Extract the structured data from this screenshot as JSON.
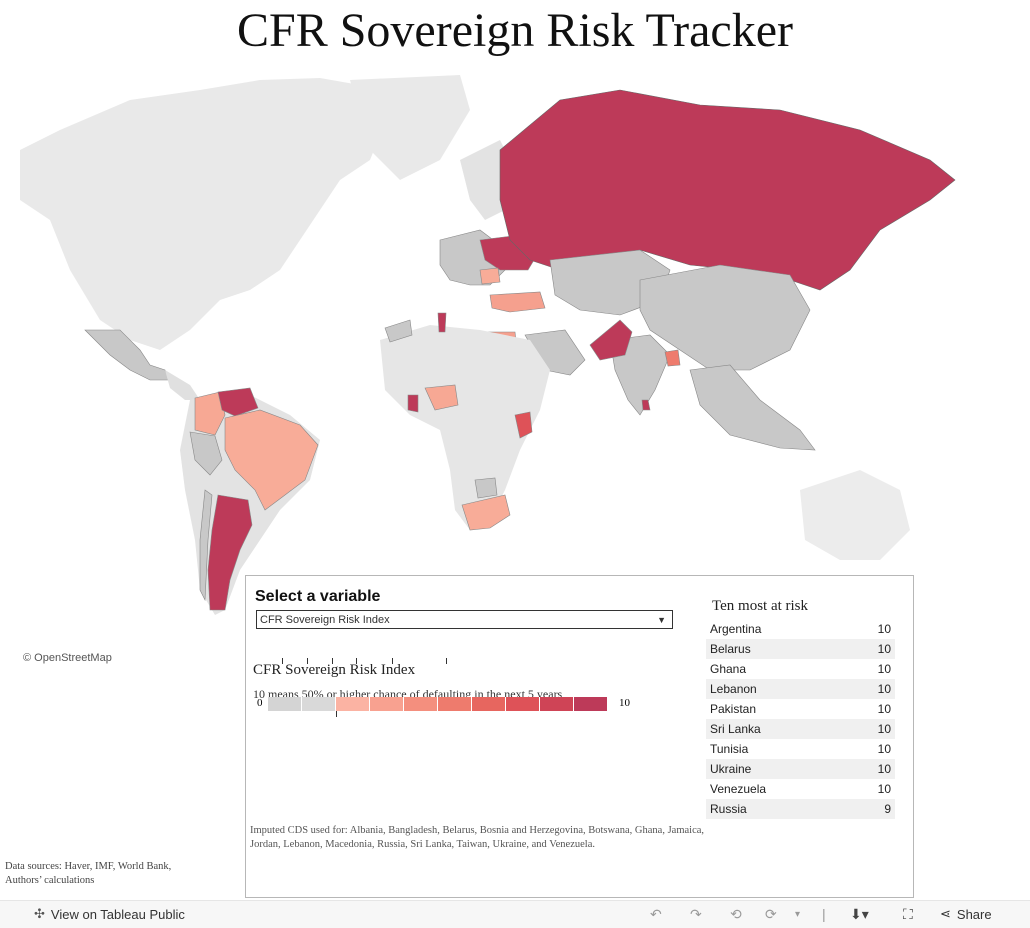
{
  "title": "CFR Sovereign Risk Tracker",
  "map": {
    "attribution": "© OpenStreetMap",
    "colors": {
      "land": "#e9e9e9",
      "no_data": "#c8c8c8",
      "water": "#ffffff"
    }
  },
  "selector": {
    "label": "Select a variable",
    "value": "CFR Sovereign Risk Index"
  },
  "legend": {
    "title": "CFR Sovereign Risk Index",
    "subtitle": "10 means 50% or higher chance of defaulting in the next 5 years",
    "min_label": "0",
    "max_label": "10",
    "scale_colors": [
      "#d4d4d4",
      "#d9d9d9",
      "#fbb3a3",
      "#f8a190",
      "#f48f7e",
      "#ee7b6d",
      "#e7665f",
      "#de5258",
      "#cf4456",
      "#bd3a59"
    ]
  },
  "top_risk": {
    "title": "Ten most at risk",
    "rows": [
      {
        "country": "Argentina",
        "value": "10"
      },
      {
        "country": "Belarus",
        "value": "10"
      },
      {
        "country": "Ghana",
        "value": "10"
      },
      {
        "country": "Lebanon",
        "value": "10"
      },
      {
        "country": "Pakistan",
        "value": "10"
      },
      {
        "country": "Sri Lanka",
        "value": "10"
      },
      {
        "country": "Tunisia",
        "value": "10"
      },
      {
        "country": "Ukraine",
        "value": "10"
      },
      {
        "country": "Venezuela",
        "value": "10"
      },
      {
        "country": "Russia",
        "value": "9"
      }
    ]
  },
  "imputed_note": "Imputed CDS used for: Albania, Bangladesh, Belarus, Bosnia and Herzegovina, Botswana, Ghana, Jamaica, Jordan, Lebanon, Macedonia, Russia, Sri Lanka, Taiwan, Ukraine, and Venezuela.",
  "sources": {
    "line1": "Data sources: Haver, IMF, World Bank,",
    "line2": "Authors’ calculations"
  },
  "toolbar": {
    "view_label": "View on Tableau Public",
    "share_label": "Share"
  }
}
